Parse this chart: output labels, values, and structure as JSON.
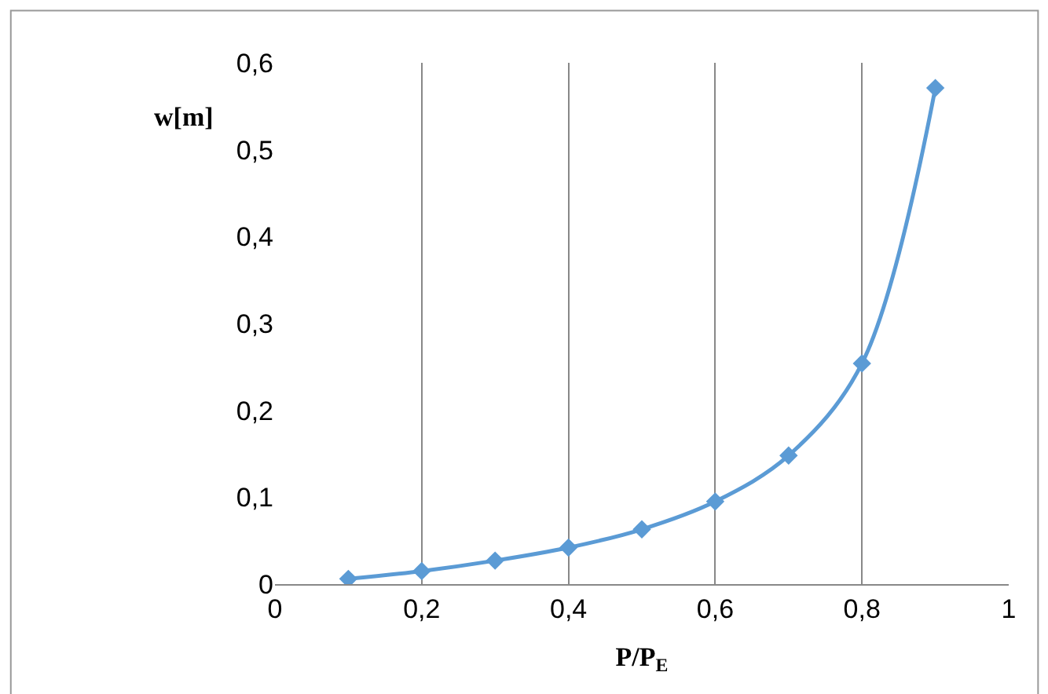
{
  "chart_data": {
    "type": "line",
    "xlabel": "P/P$_{E}$",
    "ylabel": "w[m]",
    "x": [
      0.1,
      0.2,
      0.3,
      0.4,
      0.5,
      0.6,
      0.7,
      0.8,
      0.9
    ],
    "series": [
      {
        "color": "#5b9bd5",
        "values": [
          0.006,
          0.015,
          0.027,
          0.042,
          0.063,
          0.095,
          0.148,
          0.254,
          0.571
        ]
      }
    ],
    "xlim": [
      0,
      1
    ],
    "ylim": [
      0,
      0.6
    ],
    "xticks": [
      0,
      {
        "value": 0.2,
        "label": "0,2"
      },
      {
        "value": 0.4,
        "label": "0,4"
      },
      {
        "value": 0.6,
        "label": "0,6"
      },
      {
        "value": 0.8,
        "label": "0,8"
      },
      1
    ],
    "yticks": [
      0,
      {
        "value": 0.1,
        "label": "0,1"
      },
      {
        "value": 0.2,
        "label": "0,2"
      },
      {
        "value": 0.3,
        "label": "0,3"
      },
      {
        "value": 0.4,
        "label": "0,4"
      },
      {
        "value": 0.5,
        "label": "0,5"
      },
      {
        "value": 0.6,
        "label": "0,6"
      }
    ],
    "grid": "x",
    "marker": "diamond",
    "line_style": "solid"
  }
}
